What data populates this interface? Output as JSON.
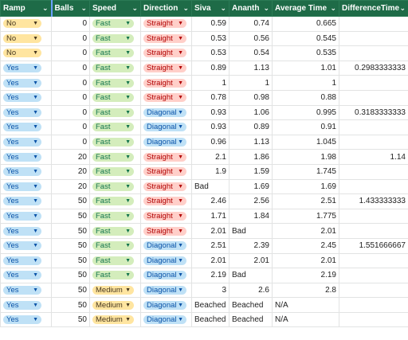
{
  "headers": [
    "Ramp",
    "Balls",
    "Speed",
    "Direction",
    "Siva",
    "Ananth",
    "Average Time",
    "DifferenceTime"
  ],
  "rows": [
    {
      "ramp": "No",
      "balls": "0",
      "speed": "Fast",
      "direction": "Straight",
      "siva": "0.59",
      "ananth": "0.74",
      "avg": "0.665",
      "diff": ""
    },
    {
      "ramp": "No",
      "balls": "0",
      "speed": "Fast",
      "direction": "Straight",
      "siva": "0.53",
      "ananth": "0.56",
      "avg": "0.545",
      "diff": ""
    },
    {
      "ramp": "No",
      "balls": "0",
      "speed": "Fast",
      "direction": "Straight",
      "siva": "0.53",
      "ananth": "0.54",
      "avg": "0.535",
      "diff": ""
    },
    {
      "ramp": "Yes",
      "balls": "0",
      "speed": "Fast",
      "direction": "Straight",
      "siva": "0.89",
      "ananth": "1.13",
      "avg": "1.01",
      "diff": "0.2983333333"
    },
    {
      "ramp": "Yes",
      "balls": "0",
      "speed": "Fast",
      "direction": "Straight",
      "siva": "1",
      "ananth": "1",
      "avg": "1",
      "diff": ""
    },
    {
      "ramp": "Yes",
      "balls": "0",
      "speed": "Fast",
      "direction": "Straight",
      "siva": "0.78",
      "ananth": "0.98",
      "avg": "0.88",
      "diff": ""
    },
    {
      "ramp": "Yes",
      "balls": "0",
      "speed": "Fast",
      "direction": "Diagonal",
      "siva": "0.93",
      "ananth": "1.06",
      "avg": "0.995",
      "diff": "0.3183333333"
    },
    {
      "ramp": "Yes",
      "balls": "0",
      "speed": "Fast",
      "direction": "Diagonal",
      "siva": "0.93",
      "ananth": "0.89",
      "avg": "0.91",
      "diff": ""
    },
    {
      "ramp": "Yes",
      "balls": "0",
      "speed": "Fast",
      "direction": "Diagonal",
      "siva": "0.96",
      "ananth": "1.13",
      "avg": "1.045",
      "diff": ""
    },
    {
      "ramp": "Yes",
      "balls": "20",
      "speed": "Fast",
      "direction": "Straight",
      "siva": "2.1",
      "ananth": "1.86",
      "avg": "1.98",
      "diff": "1.14"
    },
    {
      "ramp": "Yes",
      "balls": "20",
      "speed": "Fast",
      "direction": "Straight",
      "siva": "1.9",
      "ananth": "1.59",
      "avg": "1.745",
      "diff": ""
    },
    {
      "ramp": "Yes",
      "balls": "20",
      "speed": "Fast",
      "direction": "Straight",
      "siva": "Bad",
      "ananth": "1.69",
      "avg": "1.69",
      "diff": ""
    },
    {
      "ramp": "Yes",
      "balls": "50",
      "speed": "Fast",
      "direction": "Straight",
      "siva": "2.46",
      "ananth": "2.56",
      "avg": "2.51",
      "diff": "1.433333333"
    },
    {
      "ramp": "Yes",
      "balls": "50",
      "speed": "Fast",
      "direction": "Straight",
      "siva": "1.71",
      "ananth": "1.84",
      "avg": "1.775",
      "diff": ""
    },
    {
      "ramp": "Yes",
      "balls": "50",
      "speed": "Fast",
      "direction": "Straight",
      "siva": "2.01",
      "ananth": "Bad",
      "avg": "2.01",
      "diff": ""
    },
    {
      "ramp": "Yes",
      "balls": "50",
      "speed": "Fast",
      "direction": "Diagonal",
      "siva": "2.51",
      "ananth": "2.39",
      "avg": "2.45",
      "diff": "1.551666667"
    },
    {
      "ramp": "Yes",
      "balls": "50",
      "speed": "Fast",
      "direction": "Diagonal",
      "siva": "2.01",
      "ananth": "2.01",
      "avg": "2.01",
      "diff": ""
    },
    {
      "ramp": "Yes",
      "balls": "50",
      "speed": "Fast",
      "direction": "Diagonal",
      "siva": "2.19",
      "ananth": "Bad",
      "avg": "2.19",
      "diff": ""
    },
    {
      "ramp": "Yes",
      "balls": "50",
      "speed": "Medium",
      "direction": "Diagonal",
      "siva": "3",
      "ananth": "2.6",
      "avg": "2.8",
      "diff": ""
    },
    {
      "ramp": "Yes",
      "balls": "50",
      "speed": "Medium",
      "direction": "Diagonal",
      "siva": "Beached",
      "ananth": "Beached",
      "avg": "N/A",
      "diff": ""
    },
    {
      "ramp": "Yes",
      "balls": "50",
      "speed": "Medium",
      "direction": "Diagonal",
      "siva": "Beached",
      "ananth": "Beached",
      "avg": "N/A",
      "diff": ""
    }
  ],
  "icons": {
    "header_filter": "chevron-down-icon",
    "chip_dropdown": "caret-down-icon"
  },
  "colors": {
    "header_bg": "#1e6b47",
    "yes": "#bfe1f6",
    "no": "#ffe5a0",
    "fast": "#d4edbc",
    "medium": "#ffe5a0",
    "straight": "#ffcfc9",
    "diagonal": "#bfe1f6"
  }
}
